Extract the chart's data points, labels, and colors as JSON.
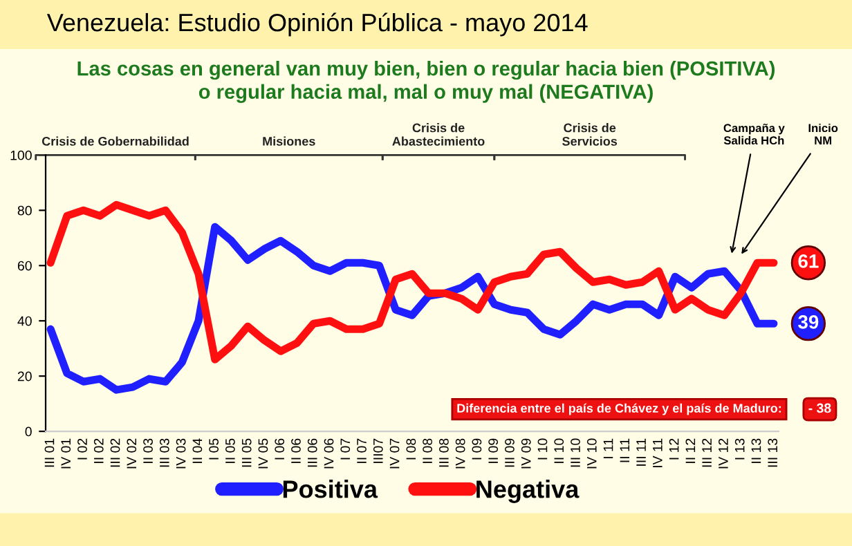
{
  "chart_data": {
    "type": "line",
    "title": "Venezuela: Estudio Opinión Pública - mayo 2014",
    "subtitle": "Las cosas en general van muy bien, bien o regular hacia bien (POSITIVA)\no regular hacia mal, mal o muy mal (NEGATIVA)",
    "categories": [
      "III 01",
      "IV 01",
      "I 02",
      "II 02",
      "III 02",
      "IV 02",
      "II 03",
      "III 03",
      "IV 03",
      "II 04",
      "I 05",
      "II 05",
      "III 05",
      "IV 05",
      "I 06",
      "II 06",
      "III 06",
      "IV 06",
      "I 07",
      "II 07",
      "III07",
      "IV 07",
      "I 08",
      "II 08",
      "III 08",
      "IV 08",
      "I 09",
      "II 09",
      "III 09",
      "IV 09",
      "I 10",
      "II 10",
      "III 10",
      "IV 10",
      "I 11",
      "II 11",
      "III 11",
      "IV 11",
      "I 12",
      "II 12",
      "III 12",
      "IV 12",
      "I 13",
      "II 13",
      "III 13"
    ],
    "series": [
      {
        "name": "Positiva",
        "color": "#1f1fff",
        "values": [
          37,
          21,
          18,
          19,
          15,
          16,
          19,
          18,
          25,
          40,
          74,
          69,
          62,
          66,
          69,
          65,
          60,
          58,
          61,
          61,
          60,
          44,
          42,
          49,
          50,
          52,
          56,
          46,
          44,
          43,
          37,
          35,
          40,
          46,
          44,
          46,
          46,
          42,
          56,
          52,
          57,
          58,
          51,
          39,
          39
        ],
        "value_labels": [
          null,
          null,
          null,
          null,
          null,
          null,
          null,
          null,
          null,
          null,
          null,
          null,
          null,
          null,
          null,
          null,
          null,
          null,
          null,
          null,
          null,
          null,
          null,
          null,
          null,
          null,
          null,
          null,
          null,
          null,
          null,
          null,
          null,
          null,
          null,
          null,
          null,
          null,
          null,
          null,
          null,
          null,
          null,
          null,
          "39"
        ]
      },
      {
        "name": "Negativa",
        "color": "#ff1010",
        "values": [
          61,
          78,
          80,
          78,
          82,
          80,
          78,
          80,
          72,
          57,
          26,
          31,
          38,
          33,
          29,
          32,
          39,
          40,
          37,
          37,
          39,
          55,
          57,
          50,
          50,
          48,
          44,
          54,
          56,
          57,
          64,
          65,
          59,
          54,
          55,
          53,
          54,
          58,
          44,
          48,
          44,
          42,
          50,
          61,
          61
        ],
        "value_labels": [
          null,
          null,
          null,
          null,
          null,
          null,
          null,
          null,
          null,
          null,
          null,
          null,
          null,
          null,
          null,
          null,
          null,
          null,
          null,
          null,
          null,
          null,
          null,
          null,
          null,
          null,
          null,
          null,
          null,
          null,
          null,
          null,
          null,
          null,
          null,
          null,
          null,
          null,
          null,
          null,
          null,
          null,
          null,
          null,
          "61"
        ]
      }
    ],
    "ylim": [
      0,
      100
    ],
    "yticks": [
      0,
      20,
      40,
      60,
      80,
      100
    ],
    "grid": false,
    "legend": "bottom",
    "marker": "none",
    "line_style": "solid",
    "annotations": [
      "Crisis de Gobernabilidad",
      "Misiones",
      "Crisis de\nAbastecimiento",
      "Crisis de\nServicios",
      "Campaña y\nSalida HCh",
      "Inicio\nNM",
      "Diferencia entre el país de Chávez y el país de Maduro:",
      "- 38"
    ]
  }
}
